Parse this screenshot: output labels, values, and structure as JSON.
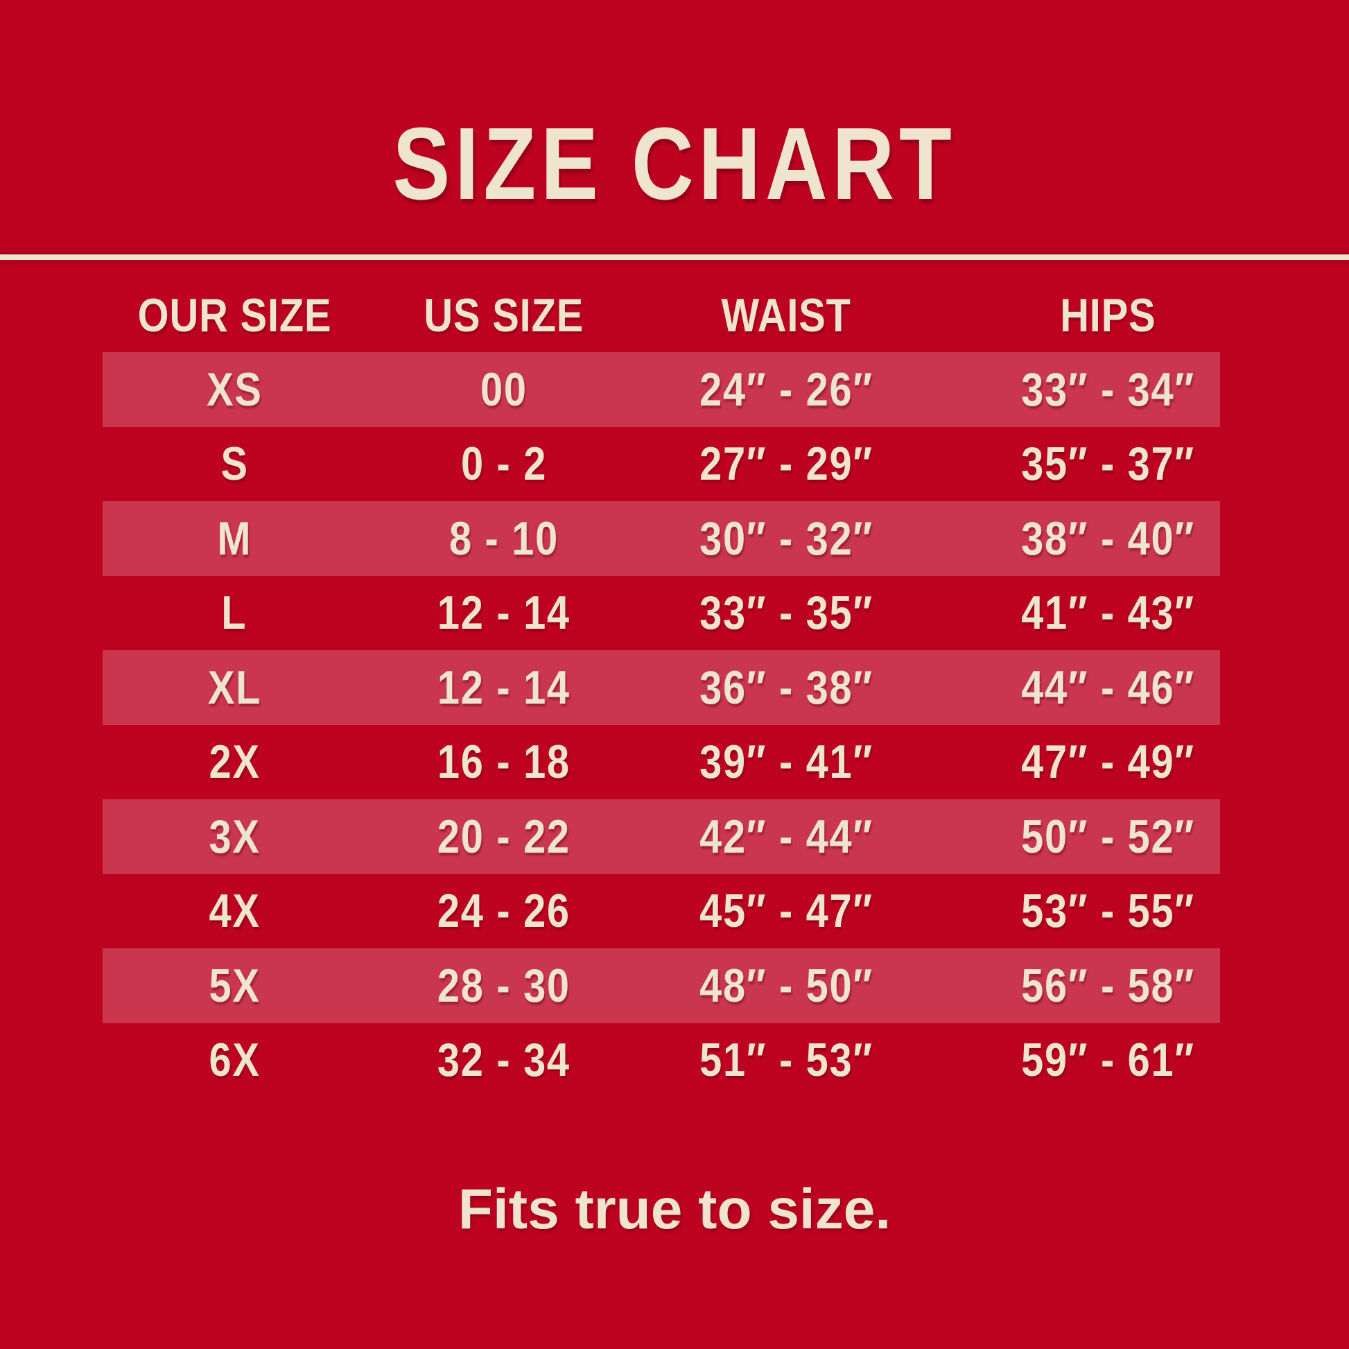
{
  "colors": {
    "background": "#BE0321",
    "stripe": "#CA364E",
    "text": "#EFE4CE"
  },
  "chart_data": {
    "type": "table",
    "title": "SIZE CHART",
    "columns": [
      "OUR SIZE",
      "US SIZE",
      "WAIST",
      "HIPS"
    ],
    "rows": [
      [
        "XS",
        "00",
        "24″ - 26″",
        "33″ - 34″"
      ],
      [
        "S",
        "0 - 2",
        "27″ - 29″",
        "35″ - 37″"
      ],
      [
        "M",
        "8 - 10",
        "30″ - 32″",
        "38″ - 40″"
      ],
      [
        "L",
        "12 - 14",
        "33″ - 35″",
        "41″ - 43″"
      ],
      [
        "XL",
        "12 - 14",
        "36″ - 38″",
        "44″ - 46″"
      ],
      [
        "2X",
        "16 - 18",
        "39″ - 41″",
        "47″ - 49″"
      ],
      [
        "3X",
        "20 - 22",
        "42″ - 44″",
        "50″ - 52″"
      ],
      [
        "4X",
        "24 - 26",
        "45″ - 47″",
        "53″ - 55″"
      ],
      [
        "5X",
        "28 - 30",
        "48″ - 50″",
        "56″ - 58″"
      ],
      [
        "6X",
        "32 - 34",
        "51″ - 53″",
        "59″ - 61″"
      ]
    ],
    "note": "Fits true to size.",
    "layout": {
      "highlighted_rows": [
        "XS",
        "M",
        "XL",
        "3X",
        "5X"
      ]
    }
  }
}
